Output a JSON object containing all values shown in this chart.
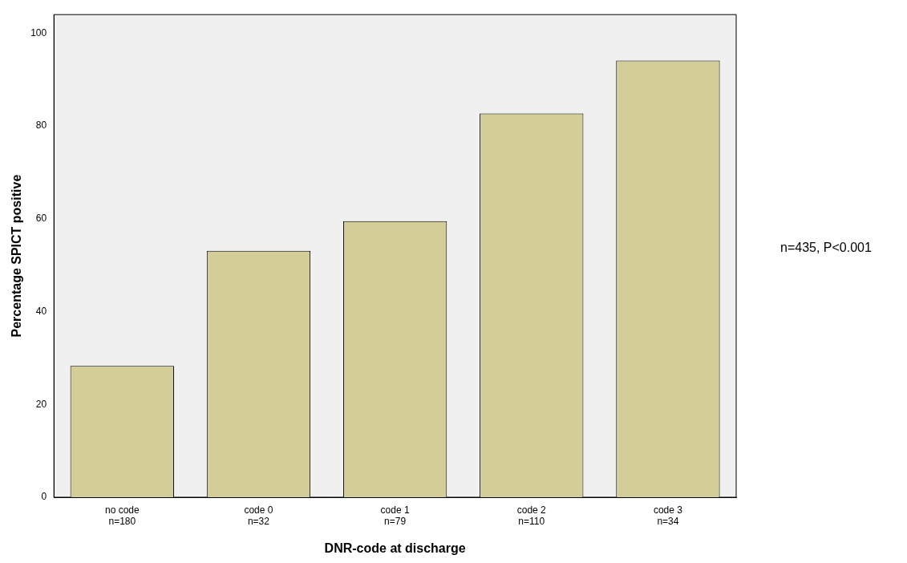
{
  "chart_data": {
    "type": "bar",
    "xlabel": "DNR-code at discharge",
    "ylabel": "Percentage SPICT positive",
    "categories": [
      "no code\nn=180",
      "code 0\nn=32",
      "code 1\nn=79",
      "code 2\nn=110",
      "code 3\nn=34"
    ],
    "values": [
      28.3,
      53.1,
      59.5,
      82.7,
      94.1
    ],
    "color": "#d3ce97",
    "ylim": [
      0,
      104
    ],
    "yticks": [
      0,
      20,
      40,
      60,
      80,
      100
    ],
    "grid": false,
    "legend": false,
    "annotations": [
      "n=435, P<0.001"
    ]
  }
}
